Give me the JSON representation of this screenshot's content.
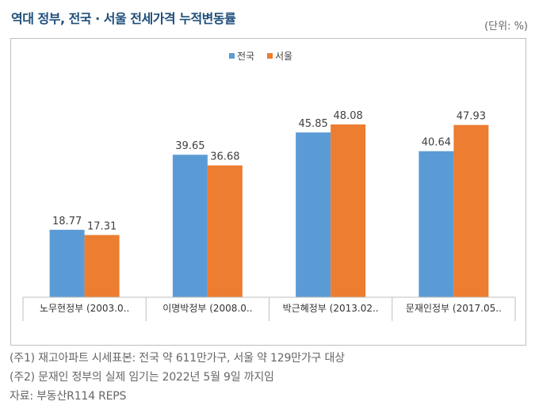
{
  "header": {
    "title": "역대 정부, 전국 · 서울 전세가격 누적변동률",
    "unit": "(단위: %)"
  },
  "colors": {
    "nationwide": "#5b9bd5",
    "seoul": "#ed7d31",
    "title": "#1f4e79"
  },
  "chart_data": {
    "type": "bar",
    "categories": [
      "노무현정부 (2003.0..",
      "이명박정부 (2008.0..",
      "박근혜정부 (2013.02..",
      "문재인정부 (2017.05.."
    ],
    "series": [
      {
        "name": "전국",
        "values": [
          18.77,
          39.65,
          45.85,
          40.64
        ]
      },
      {
        "name": "서울",
        "values": [
          17.31,
          36.68,
          48.08,
          47.93
        ]
      }
    ],
    "title": "",
    "xlabel": "",
    "ylabel": "",
    "ylim": [
      0,
      48.08
    ],
    "grid": false,
    "legend": "top-center",
    "data_labels": true
  },
  "notes": [
    "(주1) 재고아파트 시세표본: 전국 약 611만가구, 서울 약 129만가구 대상",
    "(주2) 문재인 정부의 실제 임기는 2022년 5월 9일 까지임",
    "자료: 부동산R114 REPS"
  ]
}
